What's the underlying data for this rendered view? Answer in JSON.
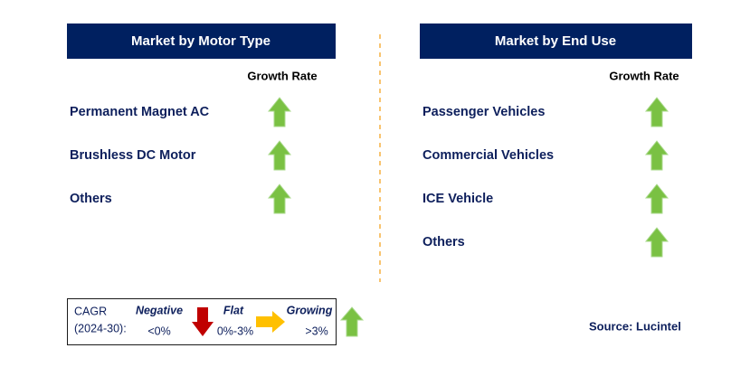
{
  "left_panel": {
    "title": "Market by Motor Type",
    "growth_rate_header": "Growth Rate",
    "items": [
      "Permanent Magnet AC",
      "Brushless DC Motor",
      "Others"
    ]
  },
  "right_panel": {
    "title": "Market by End Use",
    "growth_rate_header": "Growth Rate",
    "items": [
      "Passenger Vehicles",
      "Commercial Vehicles",
      "ICE Vehicle",
      "Others"
    ]
  },
  "legend": {
    "label": "CAGR",
    "period": "(2024-30):",
    "negative": "Negative",
    "negative_range": "<0%",
    "flat": "Flat",
    "flat_range": "0%-3%",
    "growing": "Growing",
    "growing_range": ">3%"
  },
  "source": "Source: Lucintel"
}
